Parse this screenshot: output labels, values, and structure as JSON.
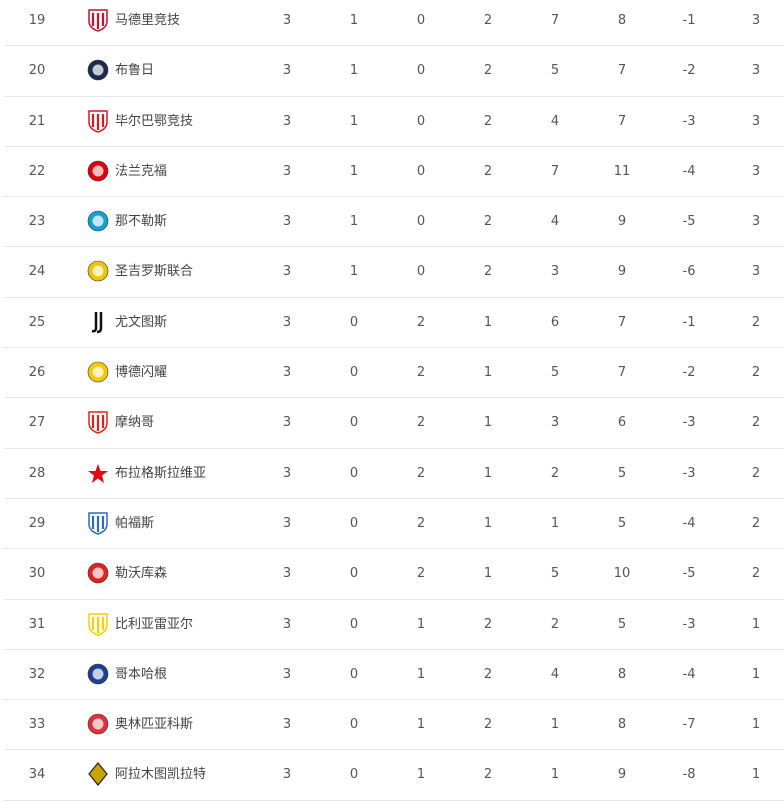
{
  "standings": [
    {
      "rank": "19",
      "team": "马德里竞技",
      "logo": "atletico-madrid-crest",
      "color": "#c8102e",
      "played": "3",
      "won": "1",
      "drawn": "0",
      "lost": "2",
      "gf": "7",
      "ga": "8",
      "gd": "-1",
      "pts": "3"
    },
    {
      "rank": "20",
      "team": "布鲁日",
      "logo": "club-brugge-crest",
      "color": "#1a2b4c",
      "played": "3",
      "won": "1",
      "drawn": "0",
      "lost": "2",
      "gf": "5",
      "ga": "7",
      "gd": "-2",
      "pts": "3"
    },
    {
      "rank": "21",
      "team": "毕尔巴鄂竞技",
      "logo": "athletic-bilbao-crest",
      "color": "#d71920",
      "played": "3",
      "won": "1",
      "drawn": "0",
      "lost": "2",
      "gf": "4",
      "ga": "7",
      "gd": "-3",
      "pts": "3"
    },
    {
      "rank": "22",
      "team": "法兰克福",
      "logo": "eintracht-frankfurt-crest",
      "color": "#e1000f",
      "played": "3",
      "won": "1",
      "drawn": "0",
      "lost": "2",
      "gf": "7",
      "ga": "11",
      "gd": "-4",
      "pts": "3"
    },
    {
      "rank": "23",
      "team": "那不勒斯",
      "logo": "napoli-crest",
      "color": "#12a0d7",
      "played": "3",
      "won": "1",
      "drawn": "0",
      "lost": "2",
      "gf": "4",
      "ga": "9",
      "gd": "-5",
      "pts": "3"
    },
    {
      "rank": "24",
      "team": "圣吉罗斯联合",
      "logo": "union-saint-gilloise-crest",
      "color": "#f2c200",
      "played": "3",
      "won": "1",
      "drawn": "0",
      "lost": "2",
      "gf": "3",
      "ga": "9",
      "gd": "-6",
      "pts": "3"
    },
    {
      "rank": "25",
      "team": "尤文图斯",
      "logo": "juventus-crest",
      "color": "#111111",
      "played": "3",
      "won": "0",
      "drawn": "2",
      "lost": "1",
      "gf": "6",
      "ga": "7",
      "gd": "-1",
      "pts": "2"
    },
    {
      "rank": "26",
      "team": "博德闪耀",
      "logo": "bodo-glimt-crest",
      "color": "#f5c800",
      "played": "3",
      "won": "0",
      "drawn": "2",
      "lost": "1",
      "gf": "5",
      "ga": "7",
      "gd": "-2",
      "pts": "2"
    },
    {
      "rank": "27",
      "team": "摩纳哥",
      "logo": "monaco-crest",
      "color": "#e2231a",
      "played": "3",
      "won": "0",
      "drawn": "2",
      "lost": "1",
      "gf": "3",
      "ga": "6",
      "gd": "-3",
      "pts": "2"
    },
    {
      "rank": "28",
      "team": "布拉格斯拉维亚",
      "logo": "slavia-prague-star",
      "color": "#e30613",
      "played": "3",
      "won": "0",
      "drawn": "2",
      "lost": "1",
      "gf": "2",
      "ga": "5",
      "gd": "-3",
      "pts": "2"
    },
    {
      "rank": "29",
      "team": "帕福斯",
      "logo": "pafos-crest",
      "color": "#2a6fb5",
      "played": "3",
      "won": "0",
      "drawn": "2",
      "lost": "1",
      "gf": "1",
      "ga": "5",
      "gd": "-4",
      "pts": "2"
    },
    {
      "rank": "30",
      "team": "勒沃库森",
      "logo": "leverkusen-crest",
      "color": "#e32221",
      "played": "3",
      "won": "0",
      "drawn": "2",
      "lost": "1",
      "gf": "5",
      "ga": "10",
      "gd": "-5",
      "pts": "2"
    },
    {
      "rank": "31",
      "team": "比利亚雷亚尔",
      "logo": "villarreal-crest",
      "color": "#f5d100",
      "played": "3",
      "won": "0",
      "drawn": "1",
      "lost": "2",
      "gf": "2",
      "ga": "5",
      "gd": "-3",
      "pts": "1"
    },
    {
      "rank": "32",
      "team": "哥本哈根",
      "logo": "copenhagen-crest",
      "color": "#1c3f94",
      "played": "3",
      "won": "0",
      "drawn": "1",
      "lost": "2",
      "gf": "4",
      "ga": "8",
      "gd": "-4",
      "pts": "1"
    },
    {
      "rank": "33",
      "team": "奥林匹亚科斯",
      "logo": "olympiacos-crest",
      "color": "#e0303b",
      "played": "3",
      "won": "0",
      "drawn": "1",
      "lost": "2",
      "gf": "1",
      "ga": "8",
      "gd": "-7",
      "pts": "1"
    },
    {
      "rank": "34",
      "team": "阿拉木图凯拉特",
      "logo": "kairat-almaty-crest",
      "color": "#c9a400",
      "played": "3",
      "won": "0",
      "drawn": "1",
      "lost": "2",
      "gf": "1",
      "ga": "9",
      "gd": "-8",
      "pts": "1"
    }
  ]
}
